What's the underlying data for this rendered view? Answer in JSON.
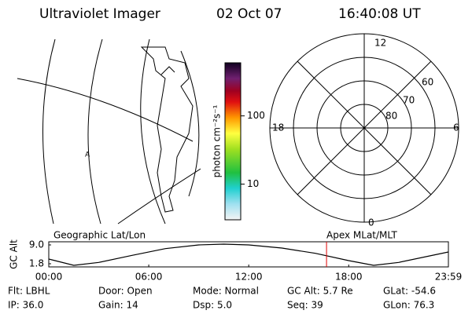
{
  "header": {
    "title": "Ultraviolet Imager",
    "date": "02 Oct 07",
    "time": "16:40:08 UT"
  },
  "map": {
    "marker": "A"
  },
  "colorbar": {
    "label": "photon cm⁻²s⁻¹",
    "log": true,
    "ylim": [
      3,
      600
    ],
    "yticks": [
      10,
      100
    ]
  },
  "polar": {
    "labels": [
      "12",
      "18",
      "6",
      "0"
    ],
    "rings": [
      "60",
      "70",
      "80"
    ]
  },
  "chart_data": {
    "type": "line",
    "ylabel": "GC Alt",
    "left_label": "Geographic Lat/Lon",
    "right_label": "Apex MLat/MLT",
    "x": [
      0,
      1.5,
      3,
      5,
      7,
      9,
      10.5,
      12,
      14,
      16,
      18,
      19.5,
      21,
      23.983
    ],
    "series": [
      {
        "color": "#000000",
        "values": [
          3.6,
          1.2,
          2.3,
          5.0,
          7.6,
          9.0,
          9.3,
          9.0,
          7.8,
          5.8,
          3.0,
          1.2,
          2.3,
          6.3
        ]
      }
    ],
    "xlim": [
      0,
      23.983
    ],
    "xticks": [
      {
        "value": 0,
        "label": "00:00"
      },
      {
        "value": 6,
        "label": "06:00"
      },
      {
        "value": 12,
        "label": "12:00"
      },
      {
        "value": 18,
        "label": "18:00"
      },
      {
        "value": 23.983,
        "label": "23:59"
      }
    ],
    "ylim": [
      0.6,
      10.2
    ],
    "yticks": [
      {
        "value": 9,
        "label": "9.0"
      },
      {
        "value": 1.8,
        "label": "1.8"
      }
    ],
    "marker_x": 16.669,
    "marker_color": "#e00000"
  },
  "footer": {
    "rows": [
      [
        "Flt: LBHL",
        "Door: Open",
        "Mode: Normal",
        "GC Alt: 5.7 Re",
        "GLat: -54.6"
      ],
      [
        "IP: 36.0",
        "Gain: 14",
        "Dsp:    5.0",
        "Seq: 39",
        "GLon:  76.3"
      ]
    ]
  }
}
